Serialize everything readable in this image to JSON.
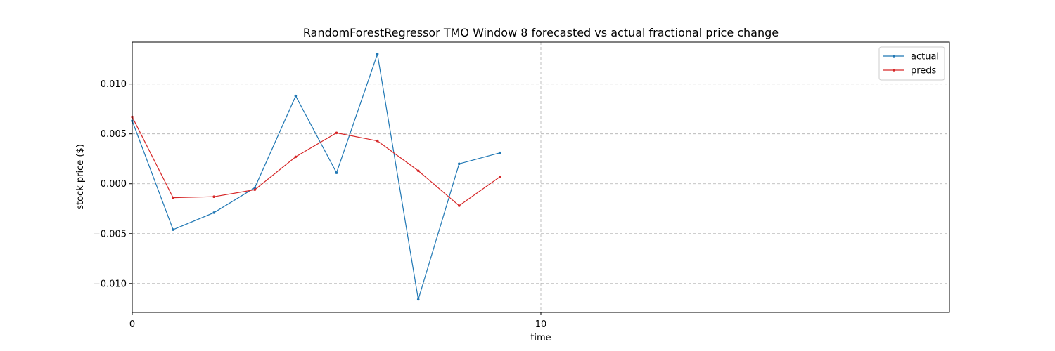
{
  "chart_data": {
    "type": "line",
    "title": "RandomForestRegressor TMO Window 8 forecasted vs actual fractional price change",
    "xlabel": "time",
    "ylabel": "stock price ($)",
    "xlim": [
      0,
      20
    ],
    "ylim": [
      -0.0129,
      0.0142
    ],
    "xticks": [
      0,
      10
    ],
    "xtick_labels": [
      "0",
      "10"
    ],
    "yticks": [
      -0.01,
      -0.005,
      0.0,
      0.005,
      0.01
    ],
    "ytick_labels": [
      "−0.010",
      "−0.005",
      "0.000",
      "0.005",
      "0.010"
    ],
    "grid": true,
    "legend_position": "top-right",
    "x": [
      0,
      1,
      2,
      3,
      4,
      5,
      6,
      7,
      8,
      9
    ],
    "series": [
      {
        "name": "actual",
        "color": "#1f77b4",
        "values": [
          0.0063,
          -0.0046,
          -0.0029,
          -0.0004,
          0.0088,
          0.0011,
          0.013,
          -0.0116,
          0.002,
          0.0031
        ]
      },
      {
        "name": "preds",
        "color": "#d62728",
        "values": [
          0.0067,
          -0.0014,
          -0.0013,
          -0.0006,
          0.0027,
          0.0051,
          0.0043,
          0.0013,
          -0.0022,
          0.0007
        ]
      }
    ]
  }
}
